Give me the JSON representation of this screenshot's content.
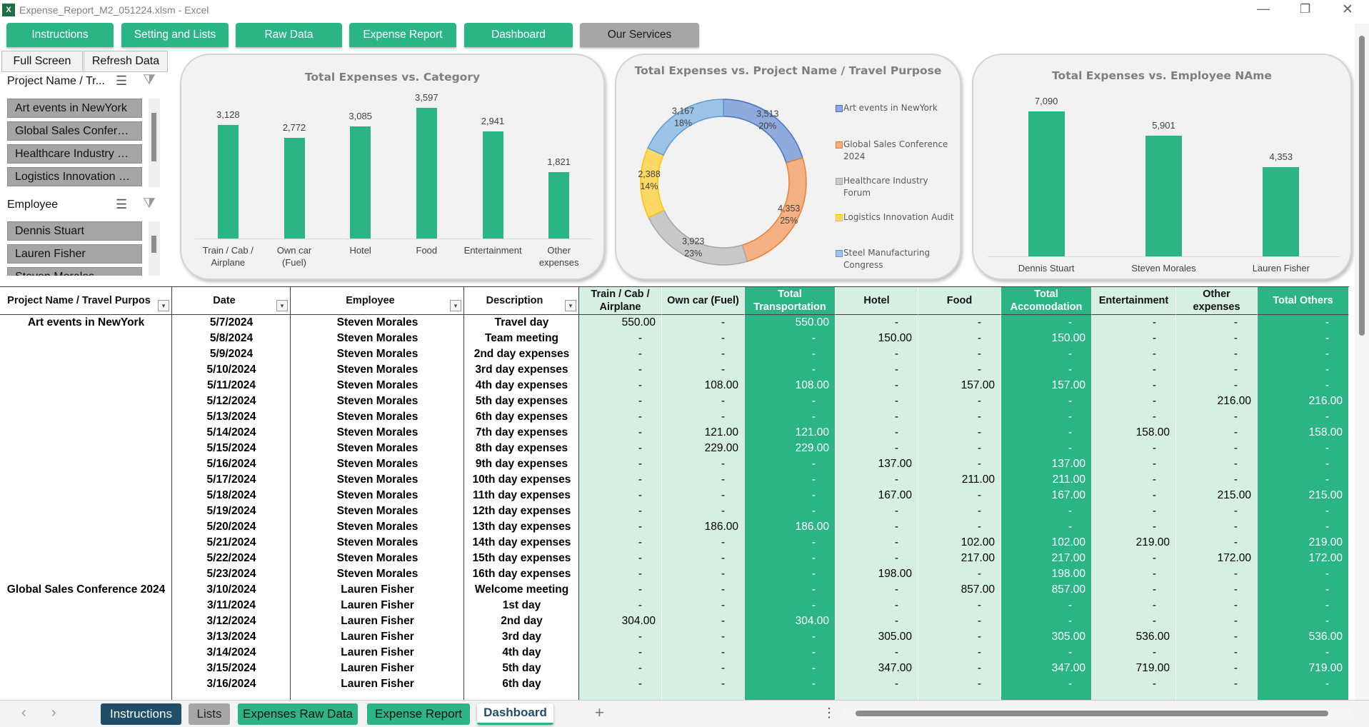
{
  "window": {
    "title": "Expense_Report_M2_051224.xlsm - Excel"
  },
  "ribbon": {
    "buttons": [
      "Instructions",
      "Setting and Lists",
      "Raw Data",
      "Expense Report",
      "Dashboard",
      "Our Services"
    ]
  },
  "controls": {
    "buttons": [
      "Full Screen",
      "Refresh Data"
    ]
  },
  "slicers": [
    {
      "title": "Project Name / Tr...",
      "items": [
        "Art events in NewYork",
        "Global Sales Confer…",
        "Healthcare Industry …",
        "Logistics Innovation …"
      ]
    },
    {
      "title": "Employee",
      "items": [
        "Dennis Stuart",
        "Lauren Fisher",
        "Steven Morales"
      ]
    }
  ],
  "chart_data": [
    {
      "type": "bar",
      "title": "Total Expenses vs. Category",
      "categories": [
        "Train / Cab / Airplane",
        "Own car (Fuel)",
        "Hotel",
        "Food",
        "Entertainment",
        "Other expenses"
      ],
      "values": [
        3128,
        2772,
        3085,
        3597,
        2941,
        1821
      ],
      "value_labels": [
        "3,128",
        "2,772",
        "3,085",
        "3,597",
        "2,941",
        "1,821"
      ],
      "color": "#2bb585"
    },
    {
      "type": "donut",
      "title": "Total Expenses vs. Project Name / Travel Purpose",
      "categories": [
        "Art events in NewYork",
        "Global Sales Conference 2024",
        "Healthcare Industry Forum",
        "Logistics Innovation Audit",
        "Steel Manufacturing Congress"
      ],
      "values": [
        3513,
        4353,
        3923,
        2388,
        3167
      ],
      "value_labels": [
        "3,513",
        "4,353",
        "3,923",
        "2,388",
        "3,167"
      ],
      "percent_labels": [
        "20%",
        "25%",
        "23%",
        "14%",
        "18%"
      ],
      "colors": [
        "#8faadc",
        "#f4b183",
        "#c9c9c9",
        "#ffd966",
        "#9dc3e6"
      ],
      "border_colors": [
        "#4472c4",
        "#ed7d31",
        "#a5a5a5",
        "#ffc000",
        "#5b9bd5"
      ],
      "legend": "right"
    },
    {
      "type": "bar",
      "title": "Total Expenses vs. Employee NAme",
      "categories": [
        "Dennis Stuart",
        "Steven Morales",
        "Lauren Fisher"
      ],
      "values": [
        7090,
        5901,
        4353
      ],
      "value_labels": [
        "7,090",
        "5,901",
        "4,353"
      ],
      "color": "#2bb585"
    }
  ],
  "table": {
    "headers": [
      "Project Name / Travel Purpos",
      "Date",
      "Employee",
      "Description",
      "Train / Cab / Airplane",
      "Own car (Fuel)",
      "Total Transportation",
      "Hotel",
      "Food",
      "Total Accomodation",
      "Entertainment",
      "Other expenses",
      "Total Others"
    ],
    "rows": [
      [
        "Art events in NewYork",
        "5/7/2024",
        "Steven Morales",
        "Travel day",
        "550.00",
        "-",
        "550.00",
        "-",
        "-",
        "-",
        "-",
        "-",
        "-"
      ],
      [
        null,
        "5/8/2024",
        "Steven Morales",
        "Team meeting",
        "-",
        "-",
        "-",
        "150.00",
        "-",
        "150.00",
        "-",
        "-",
        "-"
      ],
      [
        null,
        "5/9/2024",
        "Steven Morales",
        "2nd day expenses",
        "-",
        "-",
        "-",
        "-",
        "-",
        "-",
        "-",
        "-",
        "-"
      ],
      [
        null,
        "5/10/2024",
        "Steven Morales",
        "3rd day expenses",
        "-",
        "-",
        "-",
        "-",
        "-",
        "-",
        "-",
        "-",
        "-"
      ],
      [
        null,
        "5/11/2024",
        "Steven Morales",
        "4th day expenses",
        "-",
        "108.00",
        "108.00",
        "-",
        "157.00",
        "157.00",
        "-",
        "-",
        "-"
      ],
      [
        null,
        "5/12/2024",
        "Steven Morales",
        "5th day expenses",
        "-",
        "-",
        "-",
        "-",
        "-",
        "-",
        "-",
        "216.00",
        "216.00"
      ],
      [
        null,
        "5/13/2024",
        "Steven Morales",
        "6th day expenses",
        "-",
        "-",
        "-",
        "-",
        "-",
        "-",
        "-",
        "-",
        "-"
      ],
      [
        null,
        "5/14/2024",
        "Steven Morales",
        "7th day expenses",
        "-",
        "121.00",
        "121.00",
        "-",
        "-",
        "-",
        "158.00",
        "-",
        "158.00"
      ],
      [
        null,
        "5/15/2024",
        "Steven Morales",
        "8th day expenses",
        "-",
        "229.00",
        "229.00",
        "-",
        "-",
        "-",
        "-",
        "-",
        "-"
      ],
      [
        null,
        "5/16/2024",
        "Steven Morales",
        "9th day expenses",
        "-",
        "-",
        "-",
        "137.00",
        "-",
        "137.00",
        "-",
        "-",
        "-"
      ],
      [
        null,
        "5/17/2024",
        "Steven Morales",
        "10th day expenses",
        "-",
        "-",
        "-",
        "-",
        "211.00",
        "211.00",
        "-",
        "-",
        "-"
      ],
      [
        null,
        "5/18/2024",
        "Steven Morales",
        "11th day expenses",
        "-",
        "-",
        "-",
        "167.00",
        "-",
        "167.00",
        "-",
        "215.00",
        "215.00"
      ],
      [
        null,
        "5/19/2024",
        "Steven Morales",
        "12th day expenses",
        "-",
        "-",
        "-",
        "-",
        "-",
        "-",
        "-",
        "-",
        "-"
      ],
      [
        null,
        "5/20/2024",
        "Steven Morales",
        "13th day expenses",
        "-",
        "186.00",
        "186.00",
        "-",
        "-",
        "-",
        "-",
        "-",
        "-"
      ],
      [
        null,
        "5/21/2024",
        "Steven Morales",
        "14th day expenses",
        "-",
        "-",
        "-",
        "-",
        "102.00",
        "102.00",
        "219.00",
        "-",
        "219.00"
      ],
      [
        null,
        "5/22/2024",
        "Steven Morales",
        "15th day expenses",
        "-",
        "-",
        "-",
        "-",
        "217.00",
        "217.00",
        "-",
        "172.00",
        "172.00"
      ],
      [
        null,
        "5/23/2024",
        "Steven Morales",
        "16th day expenses",
        "-",
        "-",
        "-",
        "198.00",
        "-",
        "198.00",
        "-",
        "-",
        "-"
      ],
      [
        "Global Sales Conference 2024",
        "3/10/2024",
        "Lauren Fisher",
        "Welcome meeting",
        "-",
        "-",
        "-",
        "-",
        "857.00",
        "857.00",
        "-",
        "-",
        "-"
      ],
      [
        null,
        "3/11/2024",
        "Lauren Fisher",
        "1st day",
        "-",
        "-",
        "-",
        "-",
        "-",
        "-",
        "-",
        "-",
        "-"
      ],
      [
        null,
        "3/12/2024",
        "Lauren Fisher",
        "2nd day",
        "304.00",
        "-",
        "304.00",
        "-",
        "-",
        "-",
        "-",
        "-",
        "-"
      ],
      [
        null,
        "3/13/2024",
        "Lauren Fisher",
        "3rd day",
        "-",
        "-",
        "-",
        "305.00",
        "-",
        "305.00",
        "536.00",
        "-",
        "536.00"
      ],
      [
        null,
        "3/14/2024",
        "Lauren Fisher",
        "4th day",
        "-",
        "-",
        "-",
        "-",
        "-",
        "-",
        "-",
        "-",
        "-"
      ],
      [
        null,
        "3/15/2024",
        "Lauren Fisher",
        "5th day",
        "-",
        "-",
        "-",
        "347.00",
        "-",
        "347.00",
        "719.00",
        "-",
        "719.00"
      ],
      [
        null,
        "3/16/2024",
        "Lauren Fisher",
        "6th day",
        "-",
        "-",
        "-",
        "-",
        "-",
        "-",
        "-",
        "-",
        "-"
      ]
    ]
  },
  "sheet_tabs": [
    "Instructions",
    "Lists",
    "Expenses Raw Data",
    "Expense Report",
    "Dashboard"
  ]
}
